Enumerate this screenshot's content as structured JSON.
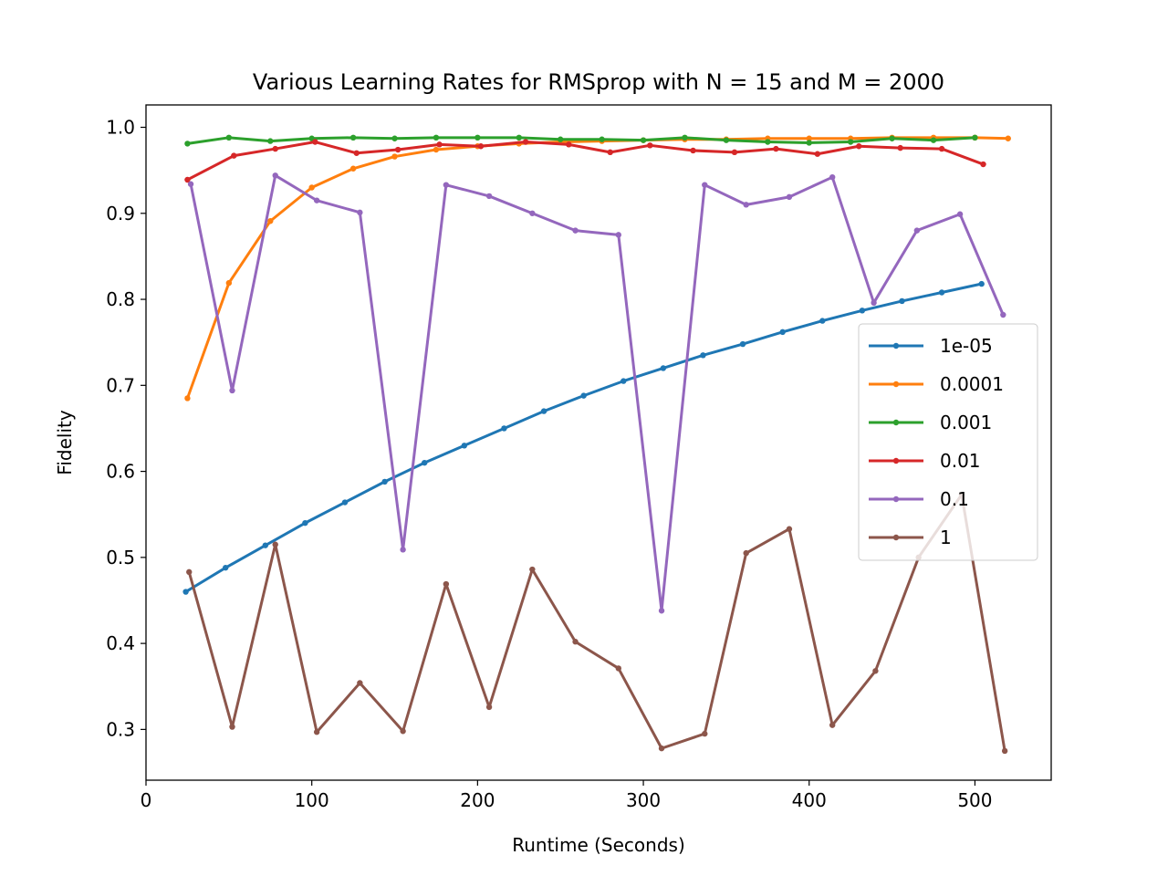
{
  "chart_data": {
    "type": "line",
    "title": "Various Learning Rates for RMSprop with N = 15 and M = 2000",
    "xlabel": "Runtime (Seconds)",
    "ylabel": "Fidelity",
    "xlim": [
      0,
      546
    ],
    "ylim": [
      0.241,
      1.026
    ],
    "xticks": [
      0,
      100,
      200,
      300,
      400,
      500
    ],
    "yticks": [
      0.3,
      0.4,
      0.5,
      0.6,
      0.7,
      0.8,
      0.9,
      1.0
    ],
    "xtick_labels": [
      "0",
      "100",
      "200",
      "300",
      "400",
      "500"
    ],
    "ytick_labels": [
      "0.3",
      "0.4",
      "0.5",
      "0.6",
      "0.7",
      "0.8",
      "0.9",
      "1.0"
    ],
    "grid": false,
    "legend_position": "center-right",
    "series": [
      {
        "name": "1e-05",
        "color": "#1f77b4",
        "x": [
          24,
          48,
          72,
          96,
          120,
          144,
          168,
          192,
          216,
          240,
          264,
          288,
          312,
          336,
          360,
          384,
          408,
          432,
          456,
          480,
          504
        ],
        "y": [
          0.46,
          0.488,
          0.514,
          0.54,
          0.564,
          0.588,
          0.61,
          0.63,
          0.65,
          0.67,
          0.688,
          0.705,
          0.72,
          0.735,
          0.748,
          0.762,
          0.775,
          0.787,
          0.798,
          0.808,
          0.818
        ]
      },
      {
        "name": "0.0001",
        "color": "#ff7f0e",
        "x": [
          25,
          50,
          75,
          100,
          125,
          150,
          175,
          200,
          225,
          250,
          275,
          300,
          325,
          350,
          375,
          400,
          425,
          450,
          475,
          500,
          520
        ],
        "y": [
          0.685,
          0.819,
          0.891,
          0.93,
          0.952,
          0.966,
          0.974,
          0.978,
          0.981,
          0.983,
          0.984,
          0.985,
          0.986,
          0.986,
          0.987,
          0.987,
          0.987,
          0.988,
          0.988,
          0.988,
          0.987
        ]
      },
      {
        "name": "0.001",
        "color": "#2ca02c",
        "x": [
          25,
          50,
          75,
          100,
          125,
          150,
          175,
          200,
          225,
          250,
          275,
          300,
          325,
          350,
          375,
          400,
          425,
          450,
          475,
          500
        ],
        "y": [
          0.981,
          0.988,
          0.984,
          0.987,
          0.988,
          0.987,
          0.988,
          0.988,
          0.988,
          0.986,
          0.986,
          0.985,
          0.988,
          0.985,
          0.983,
          0.982,
          0.983,
          0.987,
          0.985,
          0.988
        ]
      },
      {
        "name": "0.01",
        "color": "#d62728",
        "x": [
          25,
          53,
          78,
          102,
          127,
          152,
          177,
          202,
          229,
          255,
          280,
          304,
          330,
          355,
          380,
          405,
          430,
          455,
          480,
          505
        ],
        "y": [
          0.939,
          0.967,
          0.975,
          0.983,
          0.97,
          0.974,
          0.98,
          0.978,
          0.983,
          0.98,
          0.971,
          0.979,
          0.973,
          0.971,
          0.975,
          0.969,
          0.978,
          0.976,
          0.975,
          0.957
        ]
      },
      {
        "name": "0.1",
        "color": "#9467bd",
        "x": [
          27,
          52,
          78,
          103,
          129,
          155,
          181,
          207,
          233,
          259,
          285,
          311,
          337,
          362,
          388,
          414,
          439,
          465,
          491,
          517
        ],
        "y": [
          0.934,
          0.694,
          0.944,
          0.915,
          0.901,
          0.509,
          0.933,
          0.92,
          0.9,
          0.88,
          0.875,
          0.438,
          0.933,
          0.91,
          0.919,
          0.942,
          0.796,
          0.88,
          0.899,
          0.782
        ]
      },
      {
        "name": "1",
        "color": "#8c564b",
        "x": [
          26,
          52,
          78,
          103,
          129,
          155,
          181,
          207,
          233,
          259,
          285,
          311,
          337,
          362,
          388,
          414,
          440,
          466,
          492,
          518
        ],
        "y": [
          0.483,
          0.303,
          0.515,
          0.297,
          0.354,
          0.298,
          0.469,
          0.326,
          0.486,
          0.402,
          0.371,
          0.278,
          0.295,
          0.505,
          0.533,
          0.305,
          0.368,
          0.5,
          0.573,
          0.275
        ]
      }
    ]
  }
}
